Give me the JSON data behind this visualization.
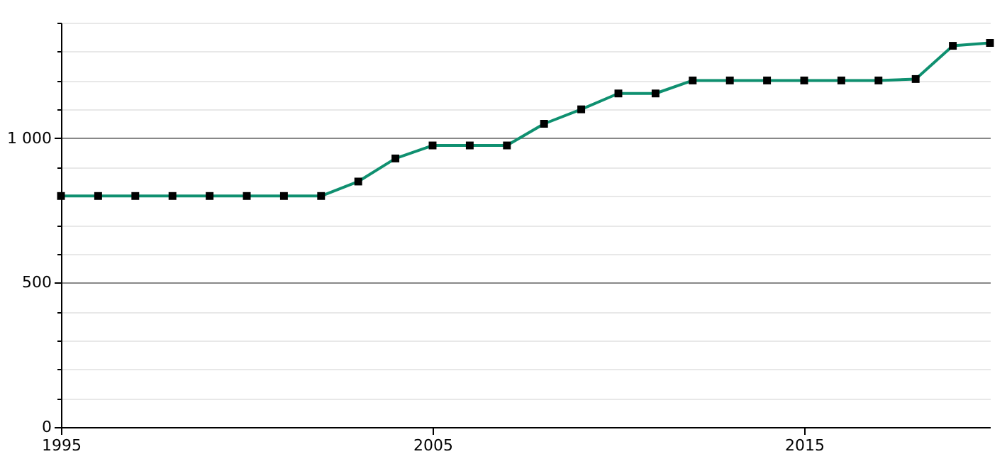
{
  "chart_data": {
    "type": "line",
    "x": [
      1995,
      1996,
      1997,
      1998,
      1999,
      2000,
      2001,
      2002,
      2003,
      2004,
      2005,
      2006,
      2007,
      2008,
      2009,
      2010,
      2011,
      2012,
      2013,
      2014,
      2015,
      2016,
      2017,
      2018,
      2019,
      2020
    ],
    "series": [
      {
        "color": "#0f9070",
        "values": [
          800,
          800,
          800,
          800,
          800,
          800,
          800,
          800,
          850,
          930,
          975,
          975,
          975,
          1050,
          1100,
          1155,
          1155,
          1200,
          1200,
          1200,
          1200,
          1200,
          1200,
          1205,
          1320,
          1330
        ]
      }
    ],
    "xlim": [
      1995,
      2020
    ],
    "xticks": [
      1995,
      2005,
      2015
    ],
    "ylim": [
      0,
      1400
    ],
    "yticks": [
      0,
      {
        "value": 100,
        "label": null
      },
      {
        "value": 200,
        "label": null
      },
      {
        "value": 300,
        "label": null
      },
      {
        "value": 400,
        "label": null
      },
      500,
      {
        "value": 600,
        "label": null
      },
      {
        "value": 700,
        "label": null
      },
      {
        "value": 800,
        "label": null
      },
      {
        "value": 900,
        "label": null
      },
      {
        "value": 1000,
        "label": "1 000"
      },
      {
        "value": 1100,
        "label": null
      },
      {
        "value": 1200,
        "label": null
      },
      {
        "value": 1300,
        "label": null
      },
      {
        "value": 1400,
        "label": null
      }
    ],
    "grid": "y",
    "marker": "square",
    "line_style": "solid"
  }
}
